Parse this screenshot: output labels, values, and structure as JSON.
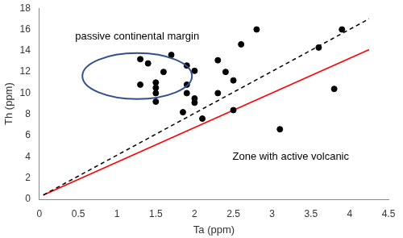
{
  "chart_data": {
    "type": "scatter",
    "x_label": "Ta (ppm)",
    "y_label": "Th (ppm)",
    "xlim": [
      0,
      4.5
    ],
    "xticks": [
      0,
      0.5,
      1,
      1.5,
      2,
      2.5,
      3,
      3.5,
      4,
      4.5
    ],
    "ylim": [
      0,
      18
    ],
    "yticks": [
      0,
      2,
      4,
      6,
      8,
      10,
      12,
      14,
      16,
      18
    ],
    "grid": false,
    "annotations": [
      "passive continental margin",
      "Zone with active volcanic"
    ],
    "series": [
      {
        "type": "scatter",
        "color": "#000000",
        "marker": "circle",
        "x": [
          1.3,
          1.4,
          1.3,
          1.5,
          1.5,
          1.5,
          1.5,
          1.6,
          1.7,
          1.85,
          1.9,
          1.9,
          1.9,
          2.0,
          2.0,
          2.0,
          2.1,
          2.3,
          2.3,
          2.4,
          2.5,
          2.5,
          2.6,
          2.8,
          3.1,
          3.6,
          3.8,
          3.9
        ],
        "values": [
          13.2,
          12.8,
          10.8,
          11.0,
          10.5,
          10.0,
          9.2,
          12.0,
          13.6,
          8.2,
          12.6,
          10.8,
          10.0,
          12.1,
          9.5,
          9.1,
          7.6,
          13.1,
          10.0,
          12.0,
          11.2,
          8.4,
          14.6,
          16.0,
          6.6,
          14.3,
          10.4,
          16.0
        ]
      },
      {
        "type": "line",
        "color": "#000000",
        "line_style": "dashed",
        "x": [
          0.05,
          4.25
        ],
        "values": [
          0.4,
          17.0
        ]
      },
      {
        "type": "line",
        "color": "#ff0000",
        "line_style": "solid",
        "x": [
          0.05,
          4.25
        ],
        "values": [
          0.4,
          14.1
        ]
      }
    ]
  }
}
